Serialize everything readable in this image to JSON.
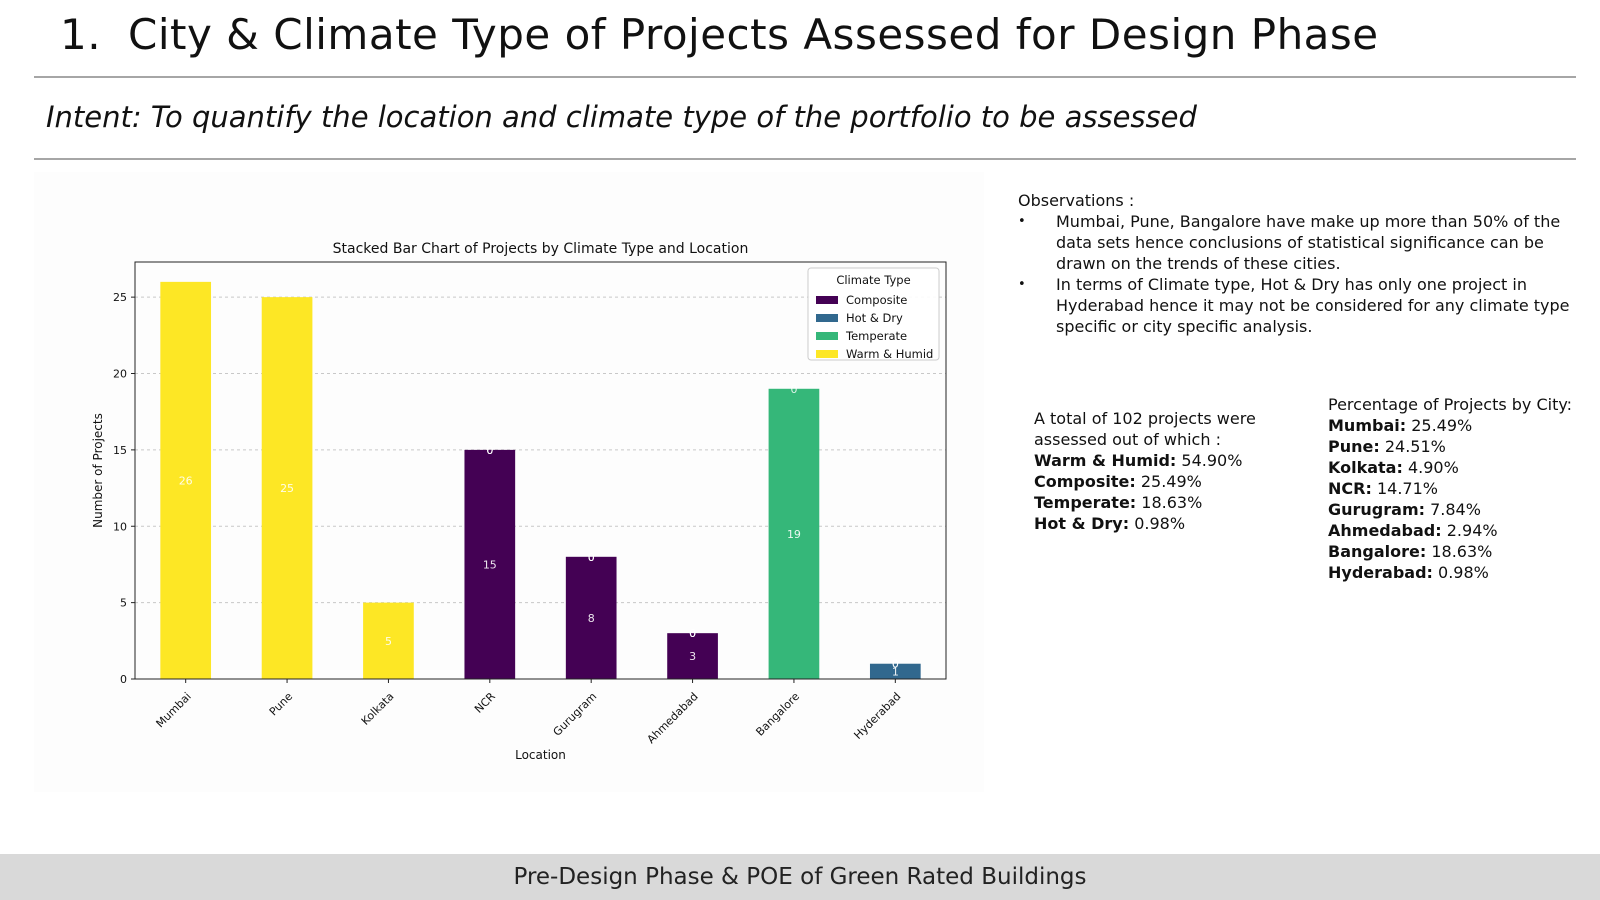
{
  "slide": {
    "number": "1.",
    "title": "City & Climate Type of Projects Assessed for Design Phase",
    "intent_label": "Intent:",
    "intent_text": "To quantify the location and climate type of the portfolio to be assessed",
    "footer": "Pre-Design Phase & POE of Green Rated Buildings"
  },
  "observations": {
    "heading": "Observations :",
    "items": [
      "Mumbai, Pune, Bangalore have make up more than 50% of the data sets hence conclusions of statistical significance can be drawn on the trends of these cities.",
      "In terms of Climate type, Hot & Dry has only one project in Hyderabad hence it may not be considered for any climate type specific or city specific analysis."
    ]
  },
  "totals": {
    "intro": "A total of 102 projects were assessed out of which :",
    "rows": [
      {
        "label": "Warm & Humid:",
        "value": "54.90%"
      },
      {
        "label": "Composite:",
        "value": "25.49%"
      },
      {
        "label": "Temperate:",
        "value": "18.63%"
      },
      {
        "label": "Hot & Dry:",
        "value": "0.98%"
      }
    ]
  },
  "city_percentages": {
    "heading": "Percentage of Projects by City:",
    "rows": [
      {
        "label": "Mumbai:",
        "value": "25.49%"
      },
      {
        "label": "Pune:",
        "value": "24.51%"
      },
      {
        "label": "Kolkata:",
        "value": "4.90%"
      },
      {
        "label": "NCR:",
        "value": "14.71%"
      },
      {
        "label": "Gurugram:",
        "value": "7.84%"
      },
      {
        "label": "Ahmedabad:",
        "value": "2.94%"
      },
      {
        "label": "Bangalore:",
        "value": "18.63%"
      },
      {
        "label": "Hyderabad:",
        "value": "0.98%"
      }
    ]
  },
  "chart_data": {
    "type": "bar",
    "stacked": true,
    "title": "Stacked Bar Chart of Projects by Climate Type and Location",
    "xlabel": "Location",
    "ylabel": "Number of Projects",
    "categories": [
      "Mumbai",
      "Pune",
      "Kolkata",
      "NCR",
      "Gurugram",
      "Ahmedabad",
      "Bangalore",
      "Hyderabad"
    ],
    "ylim": [
      0,
      27.3
    ],
    "yticks": [
      0,
      5,
      10,
      15,
      20,
      25
    ],
    "grid": true,
    "legend_title": "Climate Type",
    "legend_position": "upper right",
    "series": [
      {
        "name": "Composite",
        "color": "#440154",
        "values": [
          0,
          0,
          0,
          15,
          8,
          3,
          0,
          0
        ]
      },
      {
        "name": "Hot & Dry",
        "color": "#31688e",
        "values": [
          0,
          0,
          0,
          0,
          0,
          0,
          0,
          1
        ]
      },
      {
        "name": "Temperate",
        "color": "#35b779",
        "values": [
          0,
          0,
          0,
          0,
          0,
          0,
          19,
          0
        ]
      },
      {
        "name": "Warm & Humid",
        "color": "#fde725",
        "values": [
          26,
          25,
          5,
          0,
          0,
          0,
          0,
          0
        ]
      }
    ]
  }
}
